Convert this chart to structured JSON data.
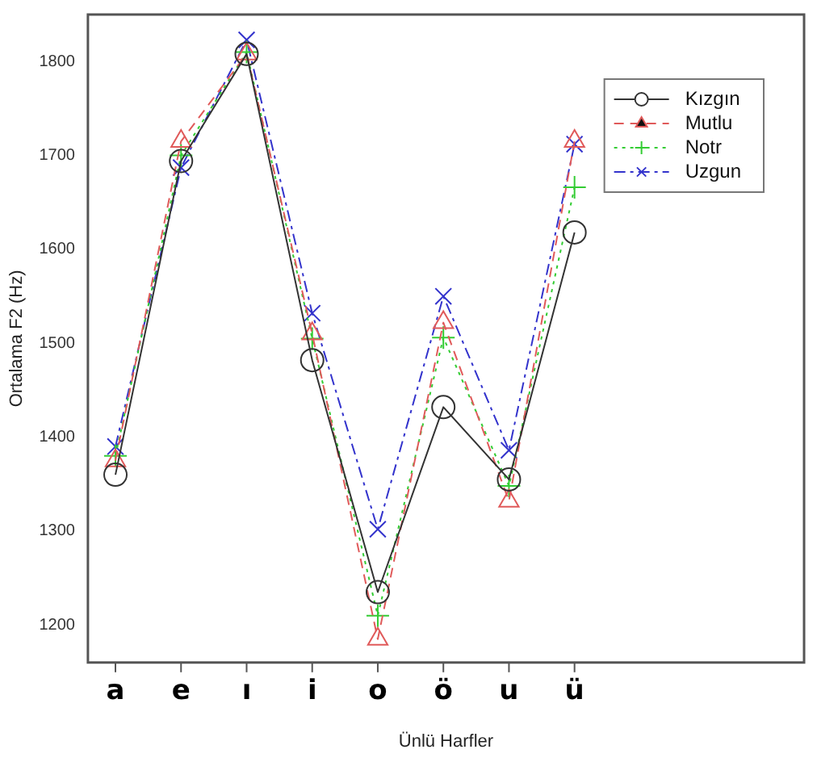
{
  "chart_data": {
    "type": "line",
    "xlabel": "Ünlü Harfler",
    "ylabel": "Ortalama F2 (Hz)",
    "categories": [
      "a",
      "e",
      "ı",
      "i",
      "o",
      "ö",
      "u",
      "ü"
    ],
    "ylim": [
      1160,
      1850
    ],
    "yticks": [
      1200,
      1300,
      1400,
      1500,
      1600,
      1700,
      1800
    ],
    "grid": false,
    "legend": "top right",
    "series": [
      {
        "name": "Kızgın",
        "color": "#333333",
        "marker": "circle",
        "line_style": "solid",
        "values": [
          1360,
          1694,
          1808,
          1482,
          1235,
          1432,
          1355,
          1618
        ]
      },
      {
        "name": "Mutlu",
        "color": "#e05a5a",
        "marker": "triangle",
        "line_style": "dashed",
        "values": [
          1375,
          1715,
          1808,
          1510,
          1185,
          1522,
          1332,
          1715
        ]
      },
      {
        "name": "Notr",
        "color": "#33cc33",
        "marker": "plus",
        "line_style": "dotted",
        "values": [
          1380,
          1700,
          1810,
          1505,
          1210,
          1506,
          1348,
          1666
        ]
      },
      {
        "name": "Uzgun",
        "color": "#3333cc",
        "marker": "cross",
        "line_style": "dashdot",
        "values": [
          1390,
          1687,
          1823,
          1532,
          1302,
          1550,
          1386,
          1712
        ]
      }
    ]
  }
}
